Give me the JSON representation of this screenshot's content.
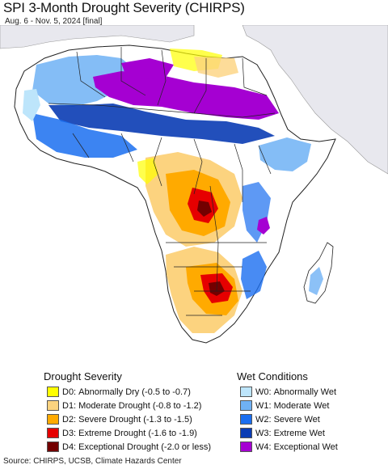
{
  "title": "SPI 3-Month Drought Severity (CHIRPS)",
  "subtitle": "Aug. 6 - Nov. 5, 2024 [final]",
  "legend": {
    "drought_heading": "Drought Severity",
    "wet_heading": "Wet Conditions",
    "drought": [
      {
        "code": "D0:",
        "label": "Abnormally Dry (-0.5 to -0.7)",
        "color": "#ffff00"
      },
      {
        "code": "D1:",
        "label": "Moderate Drought (-0.8 to -1.2)",
        "color": "#fcd37f"
      },
      {
        "code": "D2:",
        "label": "Severe Drought (-1.3 to -1.5)",
        "color": "#ffaa00"
      },
      {
        "code": "D3:",
        "label": "Extreme Drought (-1.6 to -1.9)",
        "color": "#e60000"
      },
      {
        "code": "D4:",
        "label": "Exceptional Drought (-2.0 or less)",
        "color": "#730000"
      }
    ],
    "wet": [
      {
        "code": "W0:",
        "label": "Abnormally Wet",
        "color": "#bde5fb"
      },
      {
        "code": "W1:",
        "label": "Moderate Wet",
        "color": "#6fb1f5"
      },
      {
        "code": "W2:",
        "label": "Severe Wet",
        "color": "#1a6ef0"
      },
      {
        "code": "W3:",
        "label": "Extreme Wet",
        "color": "#0a3cb4"
      },
      {
        "code": "W4:",
        "label": "Exceptional Wet",
        "color": "#a500d2"
      }
    ]
  },
  "map": {
    "land_color": "#ffffff",
    "outside_color": "#e8e8ee",
    "water_color": "#ffffff",
    "border_color": "#222222"
  },
  "source": "Source: CHIRPS, UCSB, Climate Hazards Center"
}
